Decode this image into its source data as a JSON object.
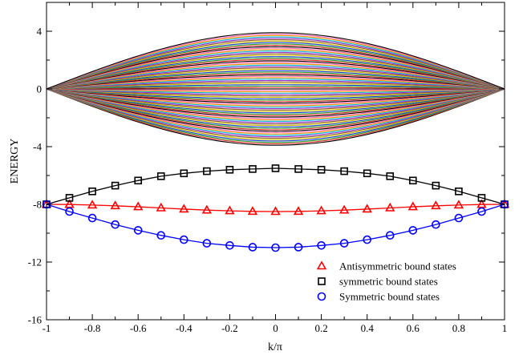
{
  "chart_data": {
    "type": "line",
    "title": "",
    "xlabel": "k/π",
    "ylabel": "ENERGY",
    "xlim": [
      -1,
      1
    ],
    "ylim": [
      -16,
      6
    ],
    "xticks": [
      -1,
      -0.8,
      -0.6,
      -0.4,
      -0.2,
      0,
      0.2,
      0.4,
      0.6,
      0.8,
      1
    ],
    "xtick_labels": [
      "-1",
      "-0.8",
      "-0.6",
      "-0.4",
      "-0.2",
      "0",
      "0.2",
      "0.4",
      "0.6",
      "0.8",
      "1"
    ],
    "yticks": [
      -16,
      -12,
      -8,
      -4,
      0,
      4
    ],
    "ytick_labels": [
      "-16",
      "-12",
      "-8",
      "-4",
      "0",
      "4"
    ],
    "grid": false,
    "legend_position": "bottom-right",
    "band": {
      "description_values": {
        "max_amplitude_at_k0": 3.9,
        "value_at_edges": 0
      },
      "colors": [
        "#000000",
        "#e8302f",
        "#2ca02c",
        "#1f3fd6",
        "#d4c400",
        "#8b5a2b",
        "#9b30d0",
        "#00bcd4",
        "#ff8c00",
        "#ff69b4"
      ]
    },
    "series": [
      {
        "name": "Antisymmetric bound states",
        "color": "#ff0000",
        "marker": "triangle",
        "x": [
          -1,
          -0.9,
          -0.8,
          -0.7,
          -0.6,
          -0.5,
          -0.4,
          -0.3,
          -0.2,
          -0.1,
          0,
          0.1,
          0.2,
          0.3,
          0.4,
          0.5,
          0.6,
          0.7,
          0.8,
          0.9,
          1
        ],
        "y": [
          -8.0,
          -8.01,
          -8.05,
          -8.1,
          -8.17,
          -8.25,
          -8.33,
          -8.4,
          -8.45,
          -8.49,
          -8.5,
          -8.49,
          -8.45,
          -8.4,
          -8.33,
          -8.25,
          -8.17,
          -8.1,
          -8.05,
          -8.01,
          -8.0
        ]
      },
      {
        "name": "symmetric bound states",
        "color": "#000000",
        "marker": "square",
        "x": [
          -1,
          -0.9,
          -0.8,
          -0.7,
          -0.6,
          -0.5,
          -0.4,
          -0.3,
          -0.2,
          -0.1,
          0,
          0.1,
          0.2,
          0.3,
          0.4,
          0.5,
          0.6,
          0.7,
          0.8,
          0.9,
          1
        ],
        "y": [
          -8.0,
          -7.55,
          -7.1,
          -6.7,
          -6.35,
          -6.05,
          -5.85,
          -5.7,
          -5.6,
          -5.55,
          -5.5,
          -5.55,
          -5.6,
          -5.7,
          -5.85,
          -6.05,
          -6.35,
          -6.7,
          -7.1,
          -7.55,
          -8.0
        ]
      },
      {
        "name": "Symmetric bound states",
        "color": "#0000ff",
        "marker": "circle",
        "x": [
          -1,
          -0.9,
          -0.8,
          -0.7,
          -0.6,
          -0.5,
          -0.4,
          -0.3,
          -0.2,
          -0.1,
          0,
          0.1,
          0.2,
          0.3,
          0.4,
          0.5,
          0.6,
          0.7,
          0.8,
          0.9,
          1
        ],
        "y": [
          -8.0,
          -8.5,
          -8.95,
          -9.4,
          -9.8,
          -10.15,
          -10.45,
          -10.7,
          -10.85,
          -10.97,
          -11.0,
          -10.97,
          -10.85,
          -10.7,
          -10.45,
          -10.15,
          -9.8,
          -9.4,
          -8.95,
          -8.5,
          -8.0
        ]
      }
    ]
  }
}
